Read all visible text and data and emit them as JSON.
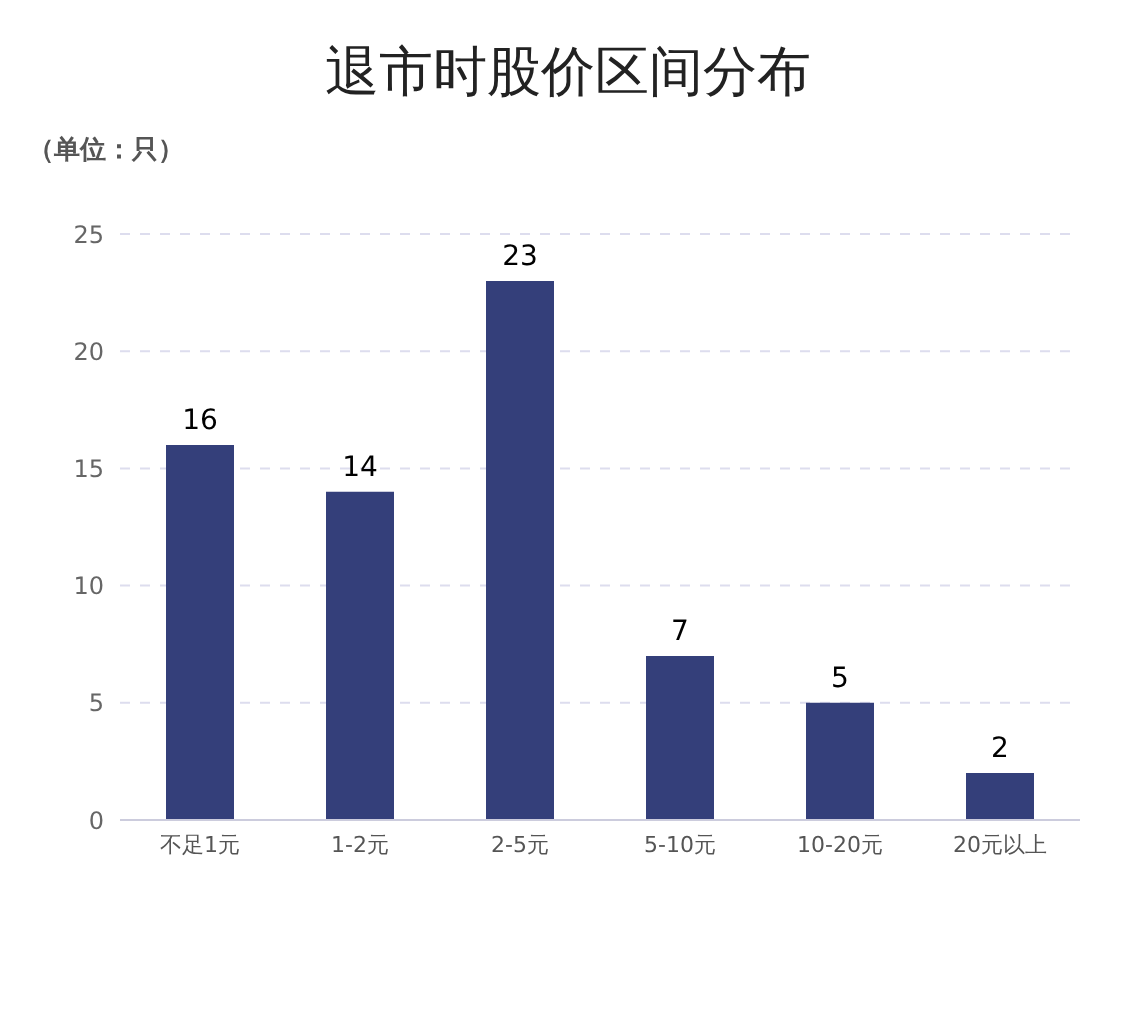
{
  "chart_data": {
    "type": "bar",
    "title": "退市时股价区间分布",
    "ylabel": "（单位：只）",
    "categories": [
      "不足1元",
      "1-2元",
      "2-5元",
      "5-10元",
      "10-20元",
      "20元以上"
    ],
    "values": [
      16,
      14,
      23,
      7,
      5,
      2
    ],
    "color": "#343f7a",
    "ylim": [
      0,
      25
    ],
    "yticks": [
      0,
      5,
      10,
      15,
      20,
      25
    ],
    "grid": "y",
    "data_labels": true
  }
}
